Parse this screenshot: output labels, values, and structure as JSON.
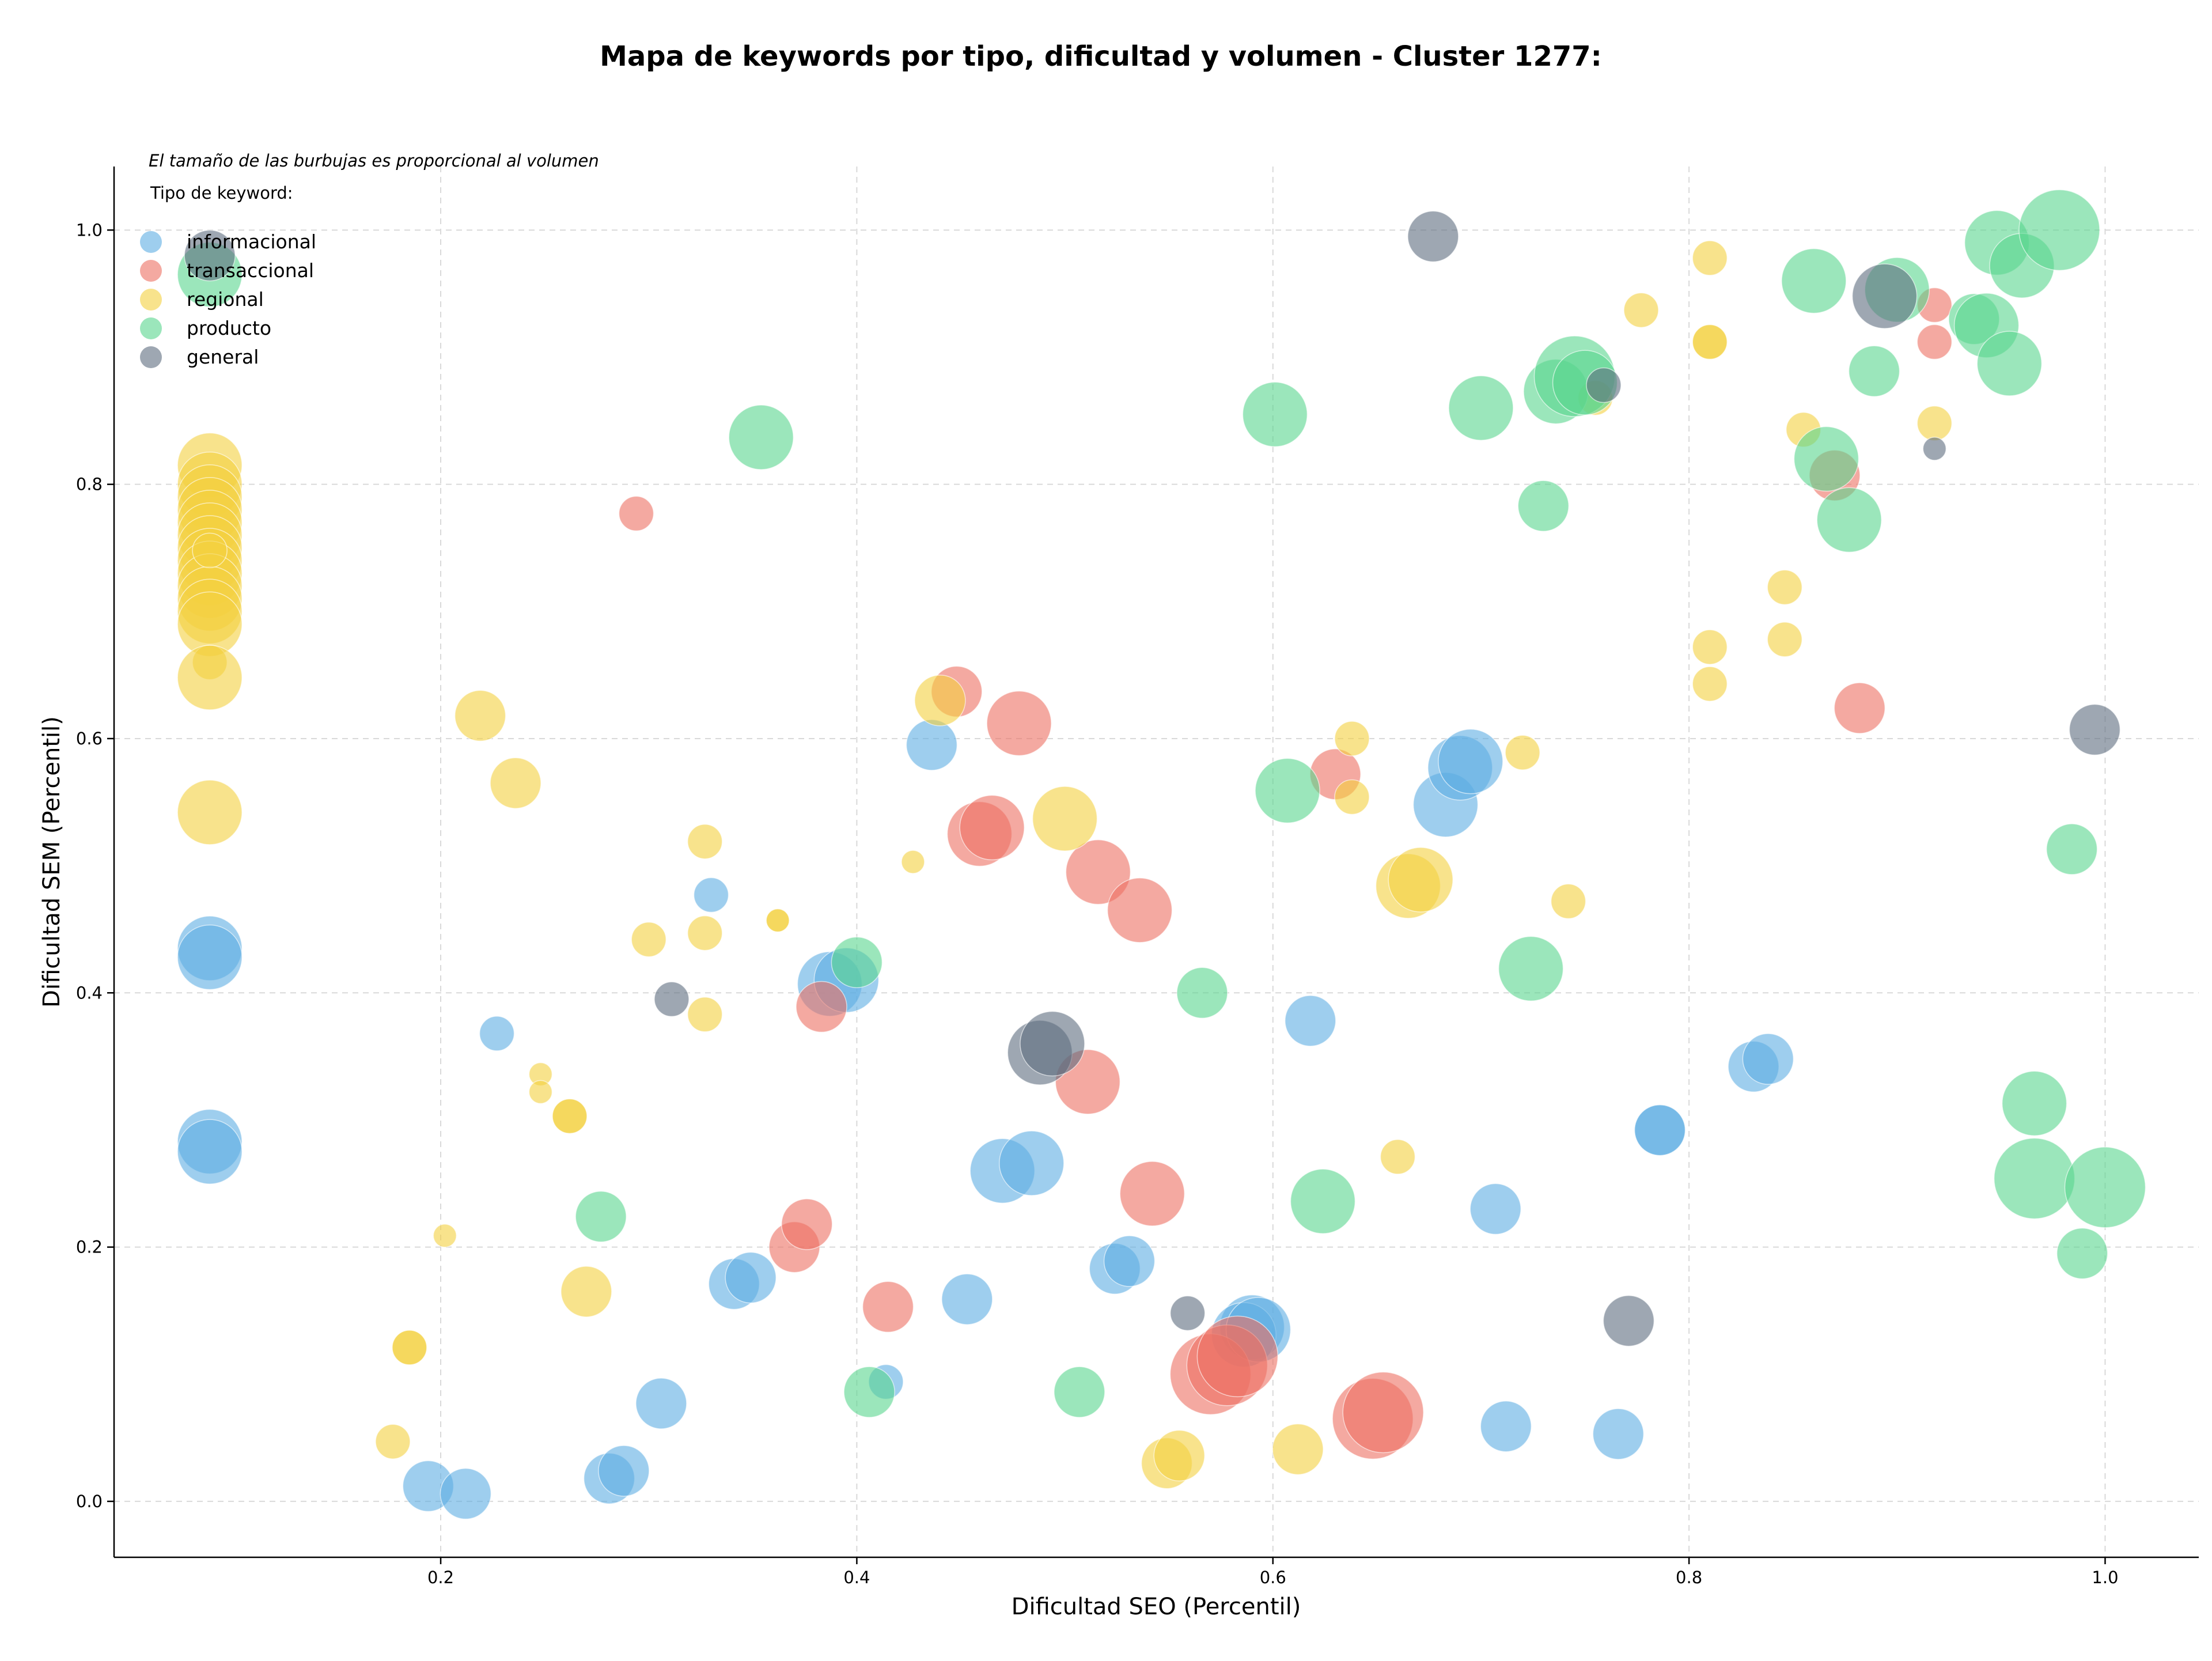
{
  "chart_data": {
    "type": "scatter",
    "title": "Mapa de keywords por tipo, dificultad y volumen - Cluster 1277:",
    "xlabel": "Dificultad SEO (Percentil)",
    "ylabel": "Dificultad SEM (Percentil)",
    "annotation": "El tamaño de las burbujas es proporcional al volumen",
    "legend_title": "Tipo de keyword:",
    "legend_position": "top-left",
    "grid": true,
    "xlim": [
      0.043,
      1.045
    ],
    "ylim": [
      -0.044,
      1.05
    ],
    "xticks": [
      0.2,
      0.4,
      0.6,
      0.8,
      1.0
    ],
    "xtick_labels": [
      "0.2",
      "0.4",
      "0.6",
      "0.8",
      "1.0"
    ],
    "yticks": [
      0.0,
      0.2,
      0.4,
      0.6,
      0.8,
      1.0
    ],
    "ytick_labels": [
      "0.0",
      "0.2",
      "0.4",
      "0.6",
      "0.8",
      "1.0"
    ],
    "series": [
      {
        "name": "informacional",
        "color": "#5dade2",
        "points": [
          [
            0.089,
            0.435,
            3
          ],
          [
            0.089,
            0.428,
            3
          ],
          [
            0.089,
            0.283,
            3
          ],
          [
            0.089,
            0.275,
            3
          ],
          [
            0.194,
            0.012,
            2
          ],
          [
            0.212,
            0.006,
            2
          ],
          [
            0.227,
            0.368,
            1
          ],
          [
            0.281,
            0.018,
            2
          ],
          [
            0.288,
            0.024,
            2
          ],
          [
            0.306,
            0.077,
            2
          ],
          [
            0.33,
            0.477,
            1
          ],
          [
            0.341,
            0.171,
            2
          ],
          [
            0.349,
            0.176,
            2
          ],
          [
            0.387,
            0.407,
            3
          ],
          [
            0.395,
            0.41,
            3
          ],
          [
            0.414,
            0.094,
            1
          ],
          [
            0.436,
            0.595,
            2
          ],
          [
            0.453,
            0.159,
            2
          ],
          [
            0.47,
            0.26,
            3
          ],
          [
            0.484,
            0.266,
            3
          ],
          [
            0.524,
            0.183,
            2
          ],
          [
            0.531,
            0.189,
            2
          ],
          [
            0.59,
            0.137,
            3
          ],
          [
            0.586,
            0.131,
            3
          ],
          [
            0.593,
            0.135,
            3
          ],
          [
            0.618,
            0.378,
            2
          ],
          [
            0.683,
            0.548,
            3
          ],
          [
            0.69,
            0.577,
            3
          ],
          [
            0.695,
            0.582,
            3
          ],
          [
            0.707,
            0.23,
            2
          ],
          [
            0.712,
            0.059,
            2
          ],
          [
            0.766,
            0.053,
            2
          ],
          [
            0.786,
            0.292,
            2
          ],
          [
            0.786,
            0.292,
            2
          ],
          [
            0.831,
            0.342,
            2
          ],
          [
            0.838,
            0.348,
            2
          ]
        ]
      },
      {
        "name": "transaccional",
        "color": "#ec7063",
        "points": [
          [
            0.294,
            0.777,
            1
          ],
          [
            0.37,
            0.2,
            2
          ],
          [
            0.376,
            0.218,
            2
          ],
          [
            0.383,
            0.389,
            2
          ],
          [
            0.415,
            0.153,
            2
          ],
          [
            0.448,
            0.637,
            2
          ],
          [
            0.459,
            0.525,
            3
          ],
          [
            0.465,
            0.53,
            3
          ],
          [
            0.478,
            0.612,
            3
          ],
          [
            0.511,
            0.33,
            3
          ],
          [
            0.516,
            0.495,
            3
          ],
          [
            0.536,
            0.465,
            3
          ],
          [
            0.542,
            0.242,
            3
          ],
          [
            0.57,
            0.1,
            4
          ],
          [
            0.578,
            0.107,
            4
          ],
          [
            0.583,
            0.114,
            4
          ],
          [
            0.63,
            0.572,
            2
          ],
          [
            0.648,
            0.065,
            4
          ],
          [
            0.653,
            0.07,
            4
          ],
          [
            0.87,
            0.807,
            2
          ],
          [
            0.882,
            0.624,
            2
          ],
          [
            0.918,
            0.912,
            1
          ],
          [
            0.918,
            0.941,
            1
          ]
        ]
      },
      {
        "name": "regional",
        "color": "#f4d03f",
        "points": [
          [
            0.089,
            0.815,
            3
          ],
          [
            0.089,
            0.8,
            3
          ],
          [
            0.089,
            0.79,
            3
          ],
          [
            0.089,
            0.78,
            3
          ],
          [
            0.089,
            0.77,
            3
          ],
          [
            0.089,
            0.76,
            3
          ],
          [
            0.089,
            0.75,
            3
          ],
          [
            0.089,
            0.74,
            3
          ],
          [
            0.089,
            0.73,
            3
          ],
          [
            0.089,
            0.72,
            3
          ],
          [
            0.089,
            0.71,
            3
          ],
          [
            0.089,
            0.7,
            3
          ],
          [
            0.089,
            0.69,
            3
          ],
          [
            0.089,
            0.748,
            1
          ],
          [
            0.089,
            0.66,
            1
          ],
          [
            0.089,
            0.648,
            3
          ],
          [
            0.089,
            0.542,
            3
          ],
          [
            0.177,
            0.047,
            1
          ],
          [
            0.185,
            0.121,
            1
          ],
          [
            0.185,
            0.121,
            1
          ],
          [
            0.202,
            0.209,
            0
          ],
          [
            0.219,
            0.618,
            2
          ],
          [
            0.236,
            0.565,
            2
          ],
          [
            0.248,
            0.336,
            0
          ],
          [
            0.248,
            0.322,
            0
          ],
          [
            0.262,
            0.303,
            1
          ],
          [
            0.262,
            0.303,
            1
          ],
          [
            0.27,
            0.165,
            2
          ],
          [
            0.3,
            0.442,
            1
          ],
          [
            0.327,
            0.519,
            1
          ],
          [
            0.327,
            0.447,
            1
          ],
          [
            0.327,
            0.383,
            1
          ],
          [
            0.362,
            0.457,
            0
          ],
          [
            0.362,
            0.457,
            0
          ],
          [
            0.427,
            0.503,
            0
          ],
          [
            0.44,
            0.63,
            2
          ],
          [
            0.5,
            0.537,
            3
          ],
          [
            0.549,
            0.03,
            2
          ],
          [
            0.555,
            0.036,
            2
          ],
          [
            0.612,
            0.041,
            2
          ],
          [
            0.638,
            0.6,
            1
          ],
          [
            0.638,
            0.554,
            1
          ],
          [
            0.66,
            0.271,
            1
          ],
          [
            0.665,
            0.484,
            3
          ],
          [
            0.671,
            0.489,
            3
          ],
          [
            0.72,
            0.589,
            1
          ],
          [
            0.742,
            0.472,
            1
          ],
          [
            0.755,
            0.868,
            1
          ],
          [
            0.777,
            0.937,
            1
          ],
          [
            0.81,
            0.978,
            1
          ],
          [
            0.81,
            0.912,
            1
          ],
          [
            0.81,
            0.912,
            1
          ],
          [
            0.81,
            0.672,
            1
          ],
          [
            0.81,
            0.643,
            1
          ],
          [
            0.846,
            0.719,
            1
          ],
          [
            0.846,
            0.678,
            1
          ],
          [
            0.855,
            0.843,
            1
          ],
          [
            0.918,
            0.848,
            1
          ]
        ]
      },
      {
        "name": "producto",
        "color": "#58d68d",
        "points": [
          [
            0.089,
            0.965,
            3
          ],
          [
            0.277,
            0.224,
            2
          ],
          [
            0.354,
            0.837,
            3
          ],
          [
            0.4,
            0.424,
            2
          ],
          [
            0.406,
            0.086,
            2
          ],
          [
            0.507,
            0.086,
            2
          ],
          [
            0.566,
            0.4,
            2
          ],
          [
            0.601,
            0.855,
            3
          ],
          [
            0.607,
            0.559,
            3
          ],
          [
            0.624,
            0.236,
            3
          ],
          [
            0.7,
            0.86,
            3
          ],
          [
            0.724,
            0.419,
            3
          ],
          [
            0.73,
            0.783,
            2
          ],
          [
            0.736,
            0.873,
            3
          ],
          [
            0.745,
            0.885,
            4
          ],
          [
            0.75,
            0.88,
            3
          ],
          [
            0.86,
            0.96,
            3
          ],
          [
            0.866,
            0.82,
            3
          ],
          [
            0.877,
            0.772,
            3
          ],
          [
            0.889,
            0.889,
            2
          ],
          [
            0.9,
            0.953,
            3
          ],
          [
            0.937,
            0.93,
            2
          ],
          [
            0.943,
            0.925,
            3
          ],
          [
            0.948,
            0.99,
            3
          ],
          [
            0.954,
            0.895,
            3
          ],
          [
            0.96,
            0.972,
            3
          ],
          [
            0.966,
            0.313,
            3
          ],
          [
            0.978,
            1.0,
            4
          ],
          [
            0.966,
            0.254,
            4
          ],
          [
            0.984,
            0.513,
            2
          ],
          [
            0.989,
            0.195,
            2
          ],
          [
            1.0,
            0.247,
            4
          ]
        ]
      },
      {
        "name": "general",
        "color": "#5d6d7e",
        "points": [
          [
            0.089,
            0.98,
            2
          ],
          [
            0.311,
            0.395,
            1
          ],
          [
            0.488,
            0.353,
            3
          ],
          [
            0.494,
            0.36,
            3
          ],
          [
            0.559,
            0.148,
            1
          ],
          [
            0.677,
            0.995,
            2
          ],
          [
            0.759,
            0.878,
            1
          ],
          [
            0.771,
            0.142,
            2
          ],
          [
            0.894,
            0.948,
            3
          ],
          [
            0.918,
            0.828,
            0
          ],
          [
            0.995,
            0.607,
            2
          ]
        ]
      }
    ]
  }
}
